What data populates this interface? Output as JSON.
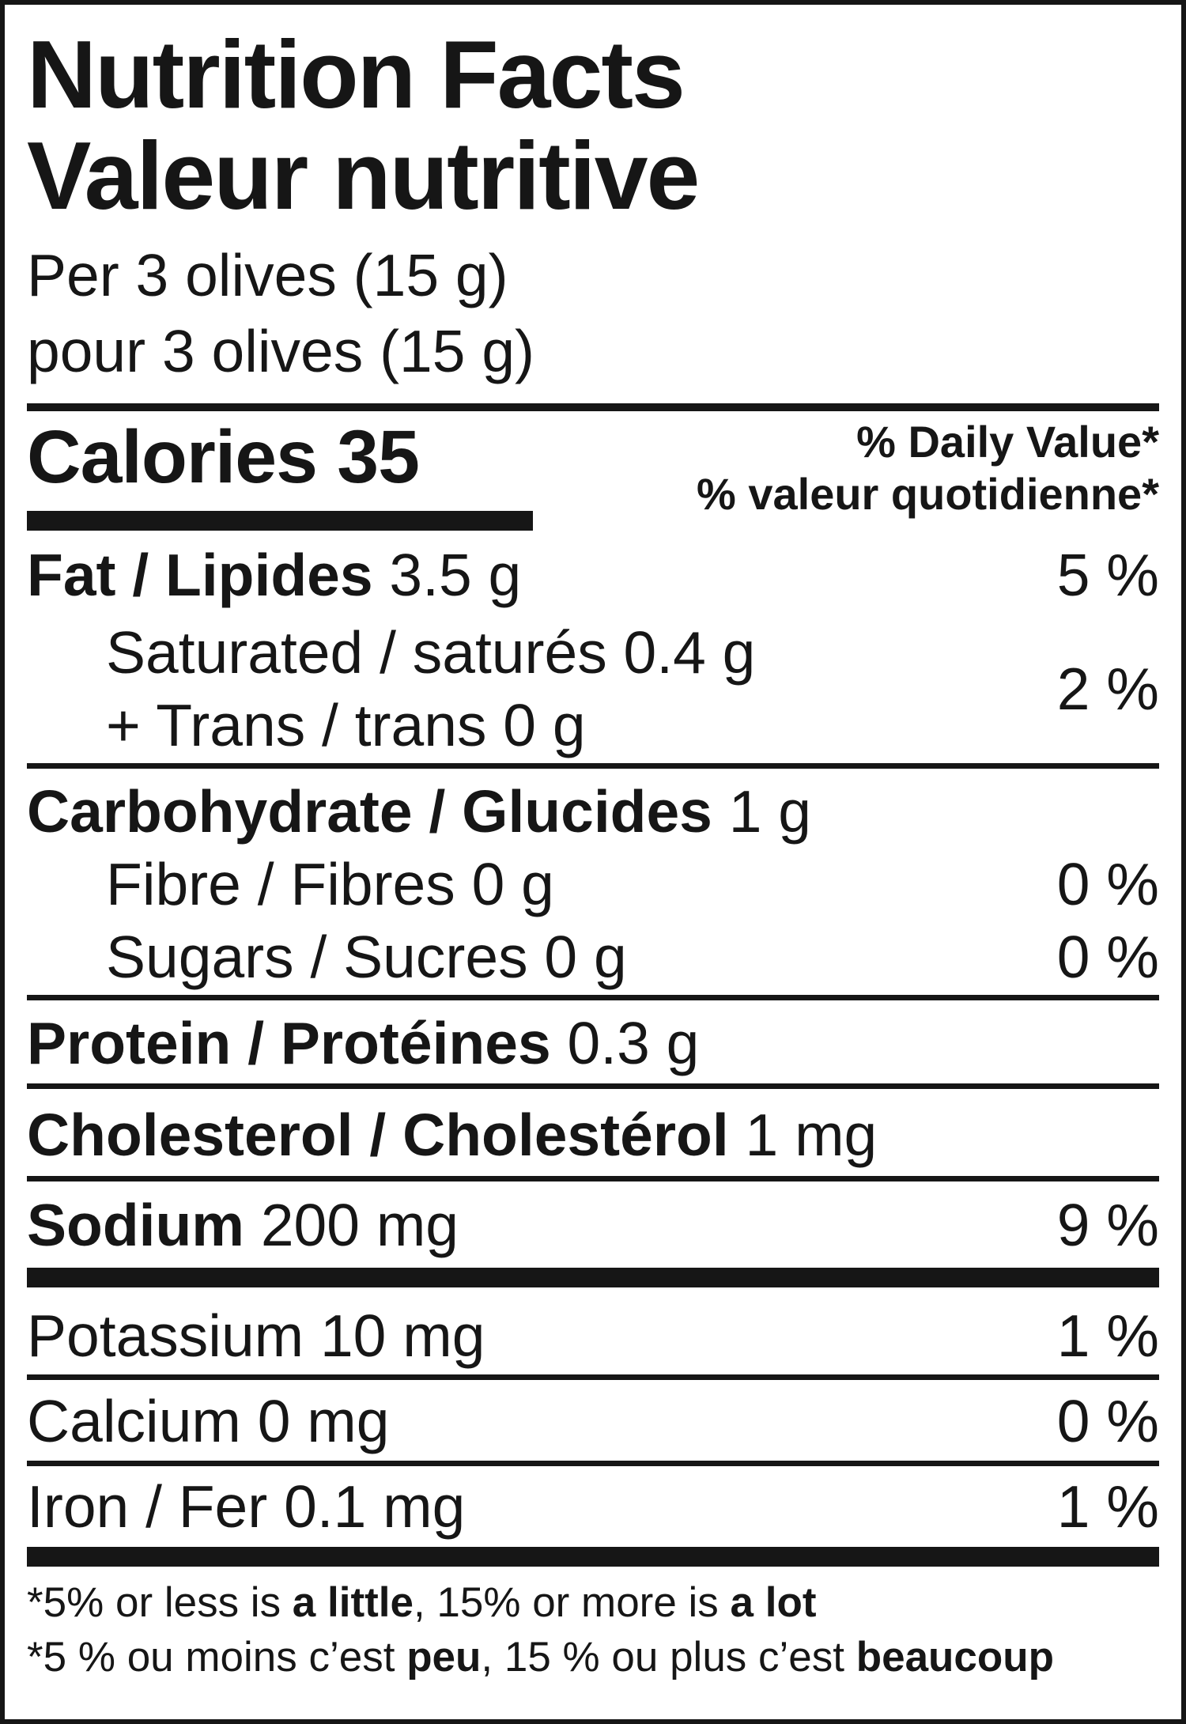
{
  "nutrition_label": {
    "title_en": "Nutrition Facts",
    "title_fr": "Valeur nutritive",
    "serving_en": "Per 3 olives (15 g)",
    "serving_fr": "pour 3 olives (15 g)",
    "calories_label": "Calories 35",
    "daily_value_header_en": "% Daily Value*",
    "daily_value_header_fr": "% valeur quotidienne*",
    "rows": {
      "fat": {
        "name": "Fat / Lipides",
        "amount": "3.5 g",
        "percent": "5 %"
      },
      "saturated_trans": {
        "line1": "Saturated / saturés 0.4 g",
        "line2": "+ Trans / trans 0 g",
        "percent": "2 %"
      },
      "carbohydrate": {
        "name": "Carbohydrate / Glucides",
        "amount": "1 g"
      },
      "fibre": {
        "name": "Fibre / Fibres 0 g",
        "percent": "0 %"
      },
      "sugars": {
        "name": "Sugars / Sucres 0 g",
        "percent": "0 %"
      },
      "protein": {
        "name": "Protein / Protéines",
        "amount": "0.3 g"
      },
      "cholesterol": {
        "name": "Cholesterol / Cholestérol",
        "amount": "1 mg"
      },
      "sodium": {
        "name": "Sodium",
        "amount": "200 mg",
        "percent": "9 %"
      },
      "potassium": {
        "name": "Potassium 10 mg",
        "percent": "1 %"
      },
      "calcium": {
        "name": "Calcium 0 mg",
        "percent": "0 %"
      },
      "iron": {
        "name": "Iron / Fer 0.1 mg",
        "percent": "1 %"
      }
    },
    "footnote_en": {
      "asterisk": "*",
      "part1": "5% or less is ",
      "bold1": "a little",
      "part2": ", 15% or more is ",
      "bold2": "a lot"
    },
    "footnote_fr": {
      "asterisk": "*",
      "part1": "5 % ou moins c’est ",
      "bold1": "peu",
      "part2": ", 15 % ou plus c’est ",
      "bold2": "beaucoup"
    },
    "colors": {
      "ink": "#161616",
      "background": "#ffffff"
    }
  }
}
